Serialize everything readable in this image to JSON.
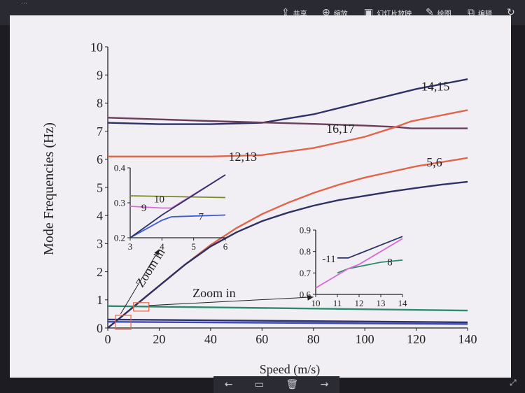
{
  "toolbar": {
    "doc_title": "…",
    "share_label": "共享",
    "zoom_label": "缩放",
    "slideshow_label": "幻灯片放映",
    "draw_label": "绘图",
    "edit_label": "编辑",
    "share_icon": "share-icon",
    "zoom_icon": "zoom-icon",
    "slideshow_icon": "slideshow-icon",
    "draw_icon": "pen-icon",
    "edit_icon": "edit-image-icon"
  },
  "bottombar": {
    "prev_icon": "arrow-left-icon",
    "delete_icon": "trash-icon",
    "next_icon": "arrow-right-icon",
    "expand_icon": "expand-icon"
  },
  "chart_data": [
    {
      "type": "line",
      "title": "",
      "xlabel": "Speed (m/s)",
      "ylabel": "Mode Frequencies (Hz)",
      "xlim": [
        0,
        140
      ],
      "ylim": [
        0,
        10
      ],
      "xticks": [
        0,
        20,
        40,
        60,
        80,
        100,
        120,
        140
      ],
      "yticks": [
        0,
        1,
        2,
        3,
        4,
        5,
        6,
        7,
        8,
        9,
        10
      ],
      "grid": false,
      "series": [
        {
          "name": "14,15",
          "color": "#2e3166",
          "x": [
            0,
            20,
            40,
            60,
            80,
            100,
            120,
            140
          ],
          "y": [
            7.3,
            7.25,
            7.25,
            7.3,
            7.6,
            8.05,
            8.5,
            8.85
          ]
        },
        {
          "name": "16,17",
          "color": "#6a3d5a",
          "x": [
            0,
            20,
            40,
            60,
            80,
            100,
            112,
            118,
            140
          ],
          "y": [
            7.48,
            7.42,
            7.36,
            7.31,
            7.26,
            7.2,
            7.15,
            7.1,
            7.1
          ]
        },
        {
          "name": "12,13",
          "color": "#e0654a",
          "x": [
            0,
            20,
            40,
            60,
            80,
            100,
            112,
            118,
            140
          ],
          "y": [
            6.1,
            6.1,
            6.1,
            6.15,
            6.4,
            6.8,
            7.15,
            7.35,
            7.75
          ]
        },
        {
          "name": "5,6",
          "color": "#e0654a",
          "x": [
            0,
            10,
            20,
            30,
            40,
            50,
            60,
            70,
            80,
            90,
            100,
            110,
            120,
            130,
            140
          ],
          "y": [
            0,
            0.75,
            1.5,
            2.25,
            2.95,
            3.55,
            4.05,
            4.45,
            4.8,
            5.1,
            5.35,
            5.55,
            5.75,
            5.9,
            6.05
          ]
        },
        {
          "name": "",
          "color": "#2e3166",
          "x": [
            0,
            10,
            20,
            30,
            40,
            50,
            60,
            70,
            80,
            90,
            100,
            110,
            120,
            130,
            140
          ],
          "y": [
            0,
            0.75,
            1.5,
            2.25,
            2.9,
            3.4,
            3.8,
            4.1,
            4.35,
            4.55,
            4.7,
            4.85,
            4.98,
            5.1,
            5.2
          ]
        },
        {
          "name": "",
          "color": "#2e8a6a",
          "x": [
            0,
            140
          ],
          "y": [
            0.78,
            0.62
          ]
        },
        {
          "name": "",
          "color": "#2e3166",
          "x": [
            0,
            140
          ],
          "y": [
            0.3,
            0.2
          ]
        },
        {
          "name": "",
          "color": "#3a4ab8",
          "x": [
            0,
            140
          ],
          "y": [
            0.22,
            0.14
          ]
        }
      ],
      "annotations": [
        {
          "text": "14,15",
          "x": 122,
          "y": 8.6
        },
        {
          "text": "16,17",
          "x": 85,
          "y": 7.1
        },
        {
          "text": "12,13",
          "x": 47,
          "y": 6.1
        },
        {
          "text": "5,6",
          "x": 124,
          "y": 5.9
        },
        {
          "text": "Zoom in",
          "x": 33,
          "y": 1.25
        },
        {
          "text": "Zoom in",
          "x": 12,
          "y": 1.5
        }
      ]
    },
    {
      "type": "line",
      "title": "",
      "xlim": [
        3,
        6
      ],
      "ylim": [
        0.2,
        0.4
      ],
      "xticks": [
        3,
        4,
        5,
        6
      ],
      "yticks": [
        0.2,
        0.3,
        0.4
      ],
      "series": [
        {
          "name": "10",
          "color": "#7a8a2a",
          "x": [
            3,
            6
          ],
          "y": [
            0.32,
            0.315
          ]
        },
        {
          "name": "9",
          "color": "#d86ad8",
          "x": [
            3,
            4,
            4.3,
            6
          ],
          "y": [
            0.29,
            0.285,
            0.285,
            0.38
          ]
        },
        {
          "name": "7",
          "color": "#3a5ad8",
          "x": [
            3,
            4,
            4.3,
            6
          ],
          "y": [
            0.2,
            0.25,
            0.26,
            0.265
          ]
        },
        {
          "name": "",
          "color": "#2e3166",
          "x": [
            3,
            4,
            6
          ],
          "y": [
            0.2,
            0.265,
            0.38
          ]
        }
      ],
      "annotations": [
        {
          "text": "10",
          "x": 3.75,
          "y": 0.31
        },
        {
          "text": "9",
          "x": 3.35,
          "y": 0.285
        },
        {
          "text": "7",
          "x": 5.15,
          "y": 0.26
        }
      ]
    },
    {
      "type": "line",
      "title": "",
      "xlim": [
        10,
        14
      ],
      "ylim": [
        0.6,
        0.9
      ],
      "xticks": [
        10,
        11,
        12,
        13,
        14
      ],
      "yticks": [
        0.6,
        0.7,
        0.8,
        0.9
      ],
      "series": [
        {
          "name": "11",
          "color": "#2e3166",
          "x": [
            11,
            11.5,
            12,
            13,
            14
          ],
          "y": [
            0.77,
            0.77,
            0.79,
            0.83,
            0.87
          ]
        },
        {
          "name": "8",
          "color": "#2e8a6a",
          "x": [
            11,
            11.5,
            12,
            13,
            14
          ],
          "y": [
            0.7,
            0.72,
            0.73,
            0.75,
            0.76
          ]
        },
        {
          "name": "",
          "color": "#d86ad8",
          "x": [
            10,
            11,
            11.5,
            12,
            13,
            14
          ],
          "y": [
            0.63,
            0.69,
            0.72,
            0.74,
            0.8,
            0.86
          ]
        }
      ],
      "annotations": [
        {
          "text": "-11",
          "x": 10.3,
          "y": 0.765
        },
        {
          "text": "8",
          "x": 13.3,
          "y": 0.75
        }
      ]
    }
  ]
}
